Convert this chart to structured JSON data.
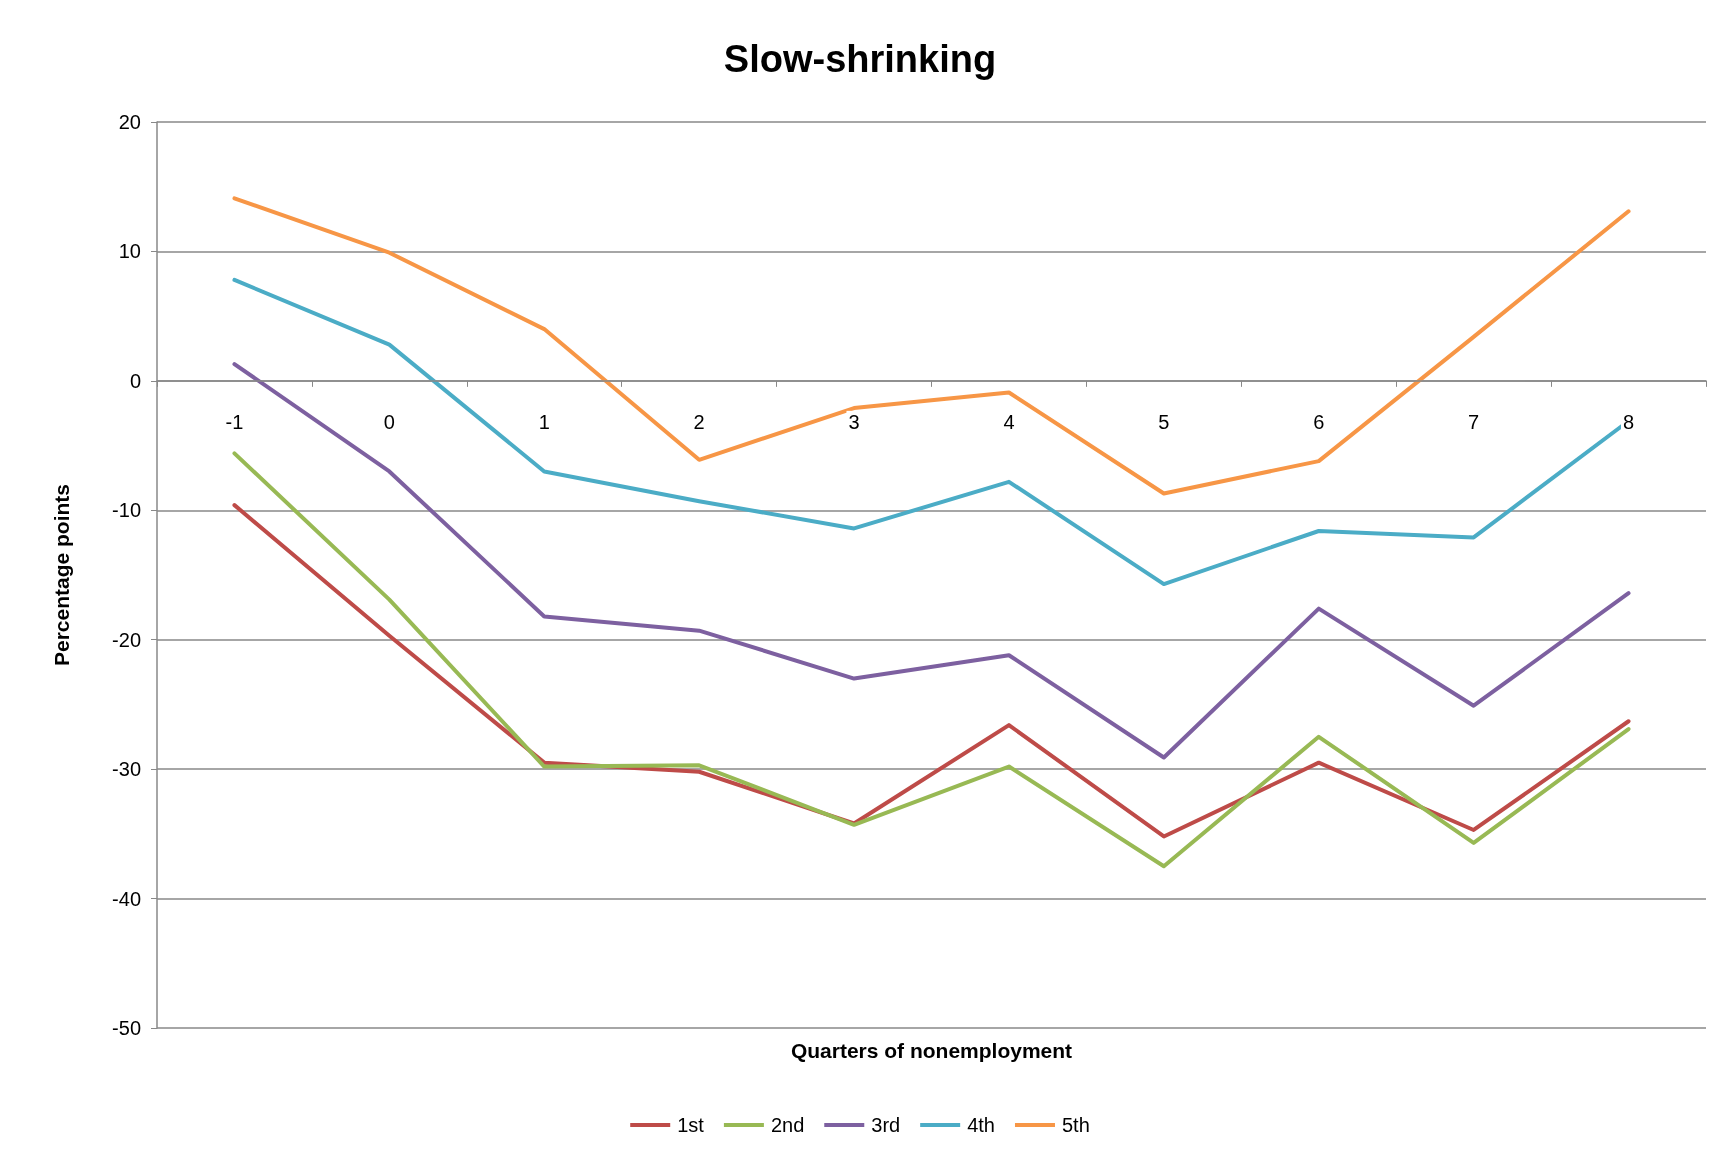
{
  "chart_data": {
    "type": "line",
    "title": "Slow-shrinking",
    "xlabel": "Quarters of nonemployment",
    "ylabel": "Percentage points",
    "categories": [
      "-1",
      "0",
      "1",
      "2",
      "3",
      "4",
      "5",
      "6",
      "7",
      "8"
    ],
    "series": [
      {
        "name": "1st",
        "color": "#be4b48",
        "values": [
          -9.6,
          -19.7,
          -29.5,
          -30.2,
          -34.2,
          -26.6,
          -35.2,
          -29.5,
          -34.7,
          -26.3
        ]
      },
      {
        "name": "2nd",
        "color": "#98b954",
        "values": [
          -5.6,
          -16.9,
          -29.8,
          -29.7,
          -34.3,
          -29.8,
          -37.5,
          -27.5,
          -35.7,
          -26.9
        ]
      },
      {
        "name": "3rd",
        "color": "#7d60a0",
        "values": [
          1.3,
          -7.0,
          -18.2,
          -19.3,
          -23.0,
          -21.2,
          -29.1,
          -17.6,
          -25.1,
          -16.4
        ]
      },
      {
        "name": "4th",
        "color": "#4bacc6",
        "values": [
          7.8,
          2.8,
          -7.0,
          -9.3,
          -11.4,
          -7.8,
          -15.7,
          -11.6,
          -12.1,
          -3.1
        ]
      },
      {
        "name": "5th",
        "color": "#f79646",
        "values": [
          14.1,
          9.9,
          4.0,
          -6.1,
          -2.1,
          -0.9,
          -8.7,
          -6.2,
          3.4,
          13.1
        ]
      }
    ],
    "ylim": [
      -50,
      20
    ],
    "yticks": [
      -50,
      -40,
      -30,
      -20,
      -10,
      0,
      10,
      20
    ],
    "grid": "y",
    "legend": "bottom",
    "marker": "none",
    "line_style": "solid"
  }
}
